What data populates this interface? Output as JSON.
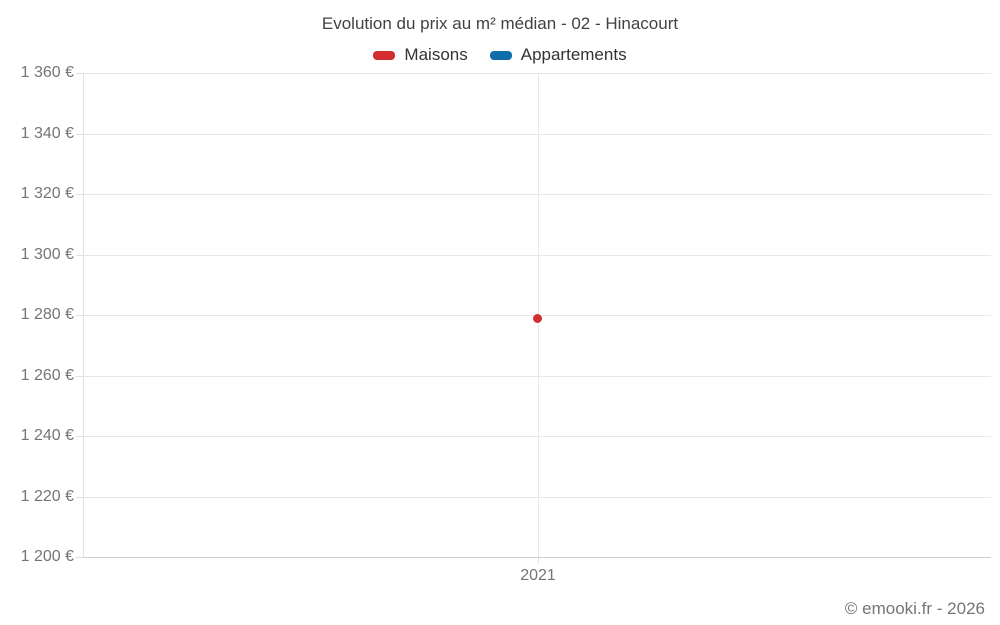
{
  "chart_data": {
    "type": "scatter",
    "title": "Evolution du prix au m² médian - 02 - Hinacourt",
    "xlabel": "",
    "ylabel": "",
    "categories": [
      "2021"
    ],
    "series": [
      {
        "name": "Maisons",
        "color": "#d32f2f",
        "values": [
          1279
        ]
      },
      {
        "name": "Appartements",
        "color": "#0f6eaa",
        "values": [
          null
        ]
      }
    ],
    "ylim": [
      1200,
      1360
    ],
    "yticks": [
      {
        "value": 1200,
        "label": "1 200 €"
      },
      {
        "value": 1220,
        "label": "1 220 €"
      },
      {
        "value": 1240,
        "label": "1 240 €"
      },
      {
        "value": 1260,
        "label": "1 260 €"
      },
      {
        "value": 1280,
        "label": "1 280 €"
      },
      {
        "value": 1300,
        "label": "1 300 €"
      },
      {
        "value": 1320,
        "label": "1 320 €"
      },
      {
        "value": 1340,
        "label": "1 340 €"
      },
      {
        "value": 1360,
        "label": "1 360 €"
      }
    ],
    "grid": true,
    "legend_position": "top"
  },
  "footer": {
    "copyright": "© emooki.fr - 2026"
  }
}
